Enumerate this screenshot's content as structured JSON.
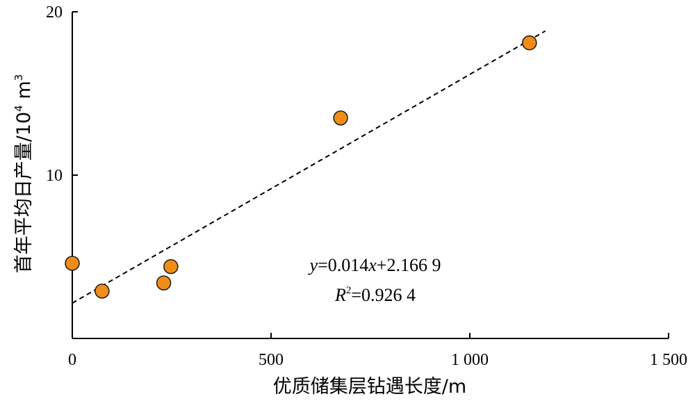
{
  "chart_data": {
    "type": "scatter",
    "xlabel": "优质储集层钻遇长度/m",
    "ylabel": "首年平均日产量/10",
    "ylabel_exp": "4",
    "ylabel_unit": " m",
    "ylabel_unit_exp": "3",
    "xlim": [
      0,
      1500
    ],
    "ylim": [
      0,
      20
    ],
    "x_ticks": [
      0,
      500,
      1000,
      1500
    ],
    "x_tick_labels": [
      "0",
      "500",
      "1 000",
      "1 500"
    ],
    "y_ticks": [
      10,
      20
    ],
    "y_tick_labels": [
      "10",
      "20"
    ],
    "grid": false,
    "series": [
      {
        "points": [
          {
            "x": 0,
            "y": 4.6
          },
          {
            "x": 75,
            "y": 2.9
          },
          {
            "x": 230,
            "y": 3.4
          },
          {
            "x": 248,
            "y": 4.4
          },
          {
            "x": 675,
            "y": 13.5
          },
          {
            "x": 1150,
            "y": 18.1
          }
        ],
        "color": "#F28C18"
      }
    ],
    "trendline": {
      "style": "dashed",
      "slope": 0.014,
      "intercept": 2.1669,
      "x_range": [
        0,
        1190
      ]
    },
    "equation": {
      "y_var": "y",
      "eq_mid": "=0.014",
      "x_var": "x",
      "eq_end": "+2.166 9",
      "r_var": "R",
      "r_exp": "2",
      "r_val": "=0.926 4"
    }
  }
}
